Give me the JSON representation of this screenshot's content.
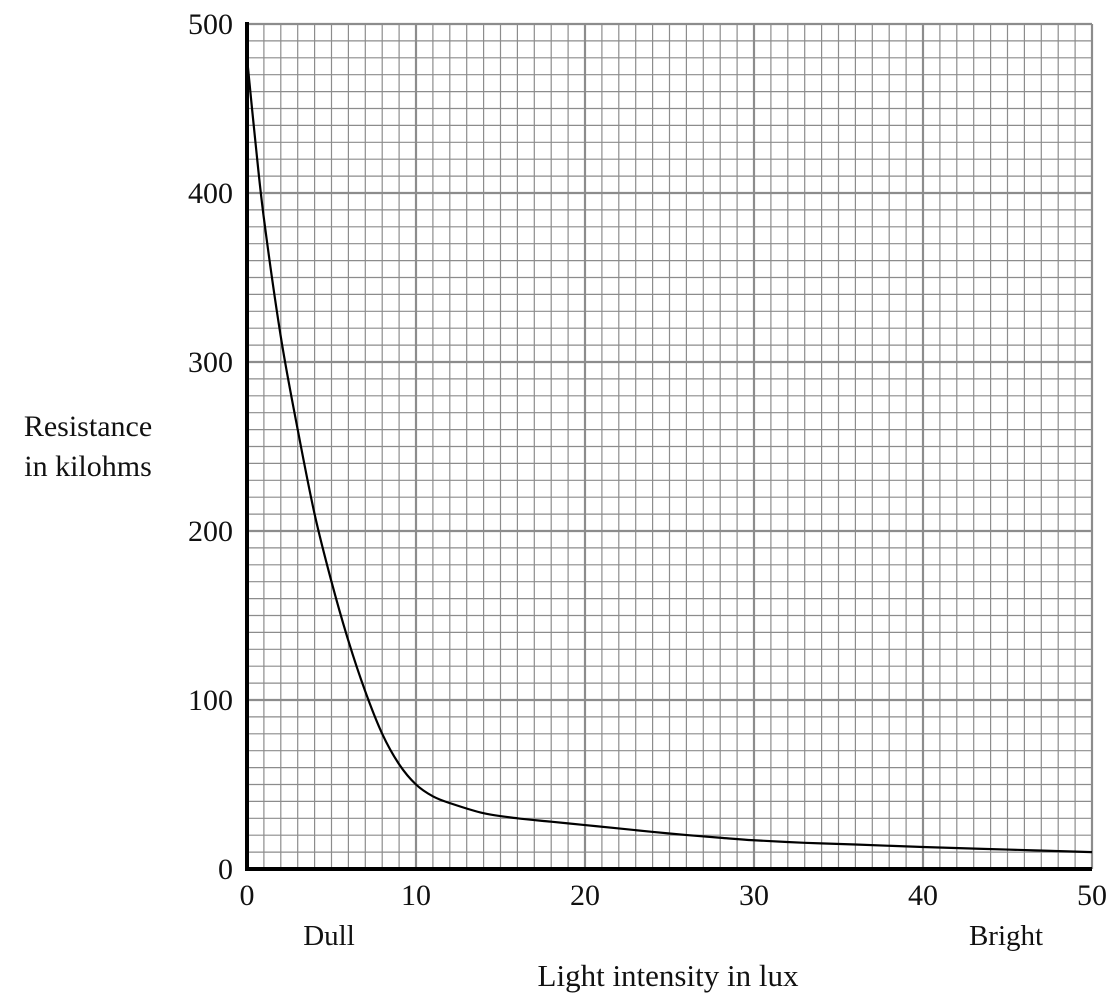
{
  "chart_data": {
    "type": "line",
    "title": "",
    "xlabel": "Light intensity in lux",
    "ylabel": [
      "Resistance",
      "in kilohms"
    ],
    "xlim": [
      0,
      50
    ],
    "ylim": [
      0,
      500
    ],
    "x_ticks": [
      "0",
      "10",
      "20",
      "30",
      "40",
      "50"
    ],
    "y_ticks": [
      "0",
      "100",
      "200",
      "300",
      "400",
      "500"
    ],
    "x_end_labels": {
      "low": "Dull",
      "high": "Bright"
    },
    "grid": true,
    "grid_color": "#8c8c8c",
    "line_color": "#000000",
    "series": [
      {
        "x": [
          0,
          0.5,
          1,
          2,
          3,
          4,
          5,
          6,
          7,
          8,
          9,
          10,
          11,
          12,
          14,
          16,
          18,
          20,
          22,
          25,
          28,
          30,
          33,
          36,
          40,
          45,
          50
        ],
        "values": [
          480,
          430,
          385,
          315,
          260,
          210,
          170,
          135,
          105,
          80,
          62,
          50,
          43,
          39,
          33,
          30,
          28,
          26,
          24,
          21,
          18.5,
          17,
          15.5,
          14.5,
          13,
          11.5,
          10
        ]
      }
    ]
  }
}
